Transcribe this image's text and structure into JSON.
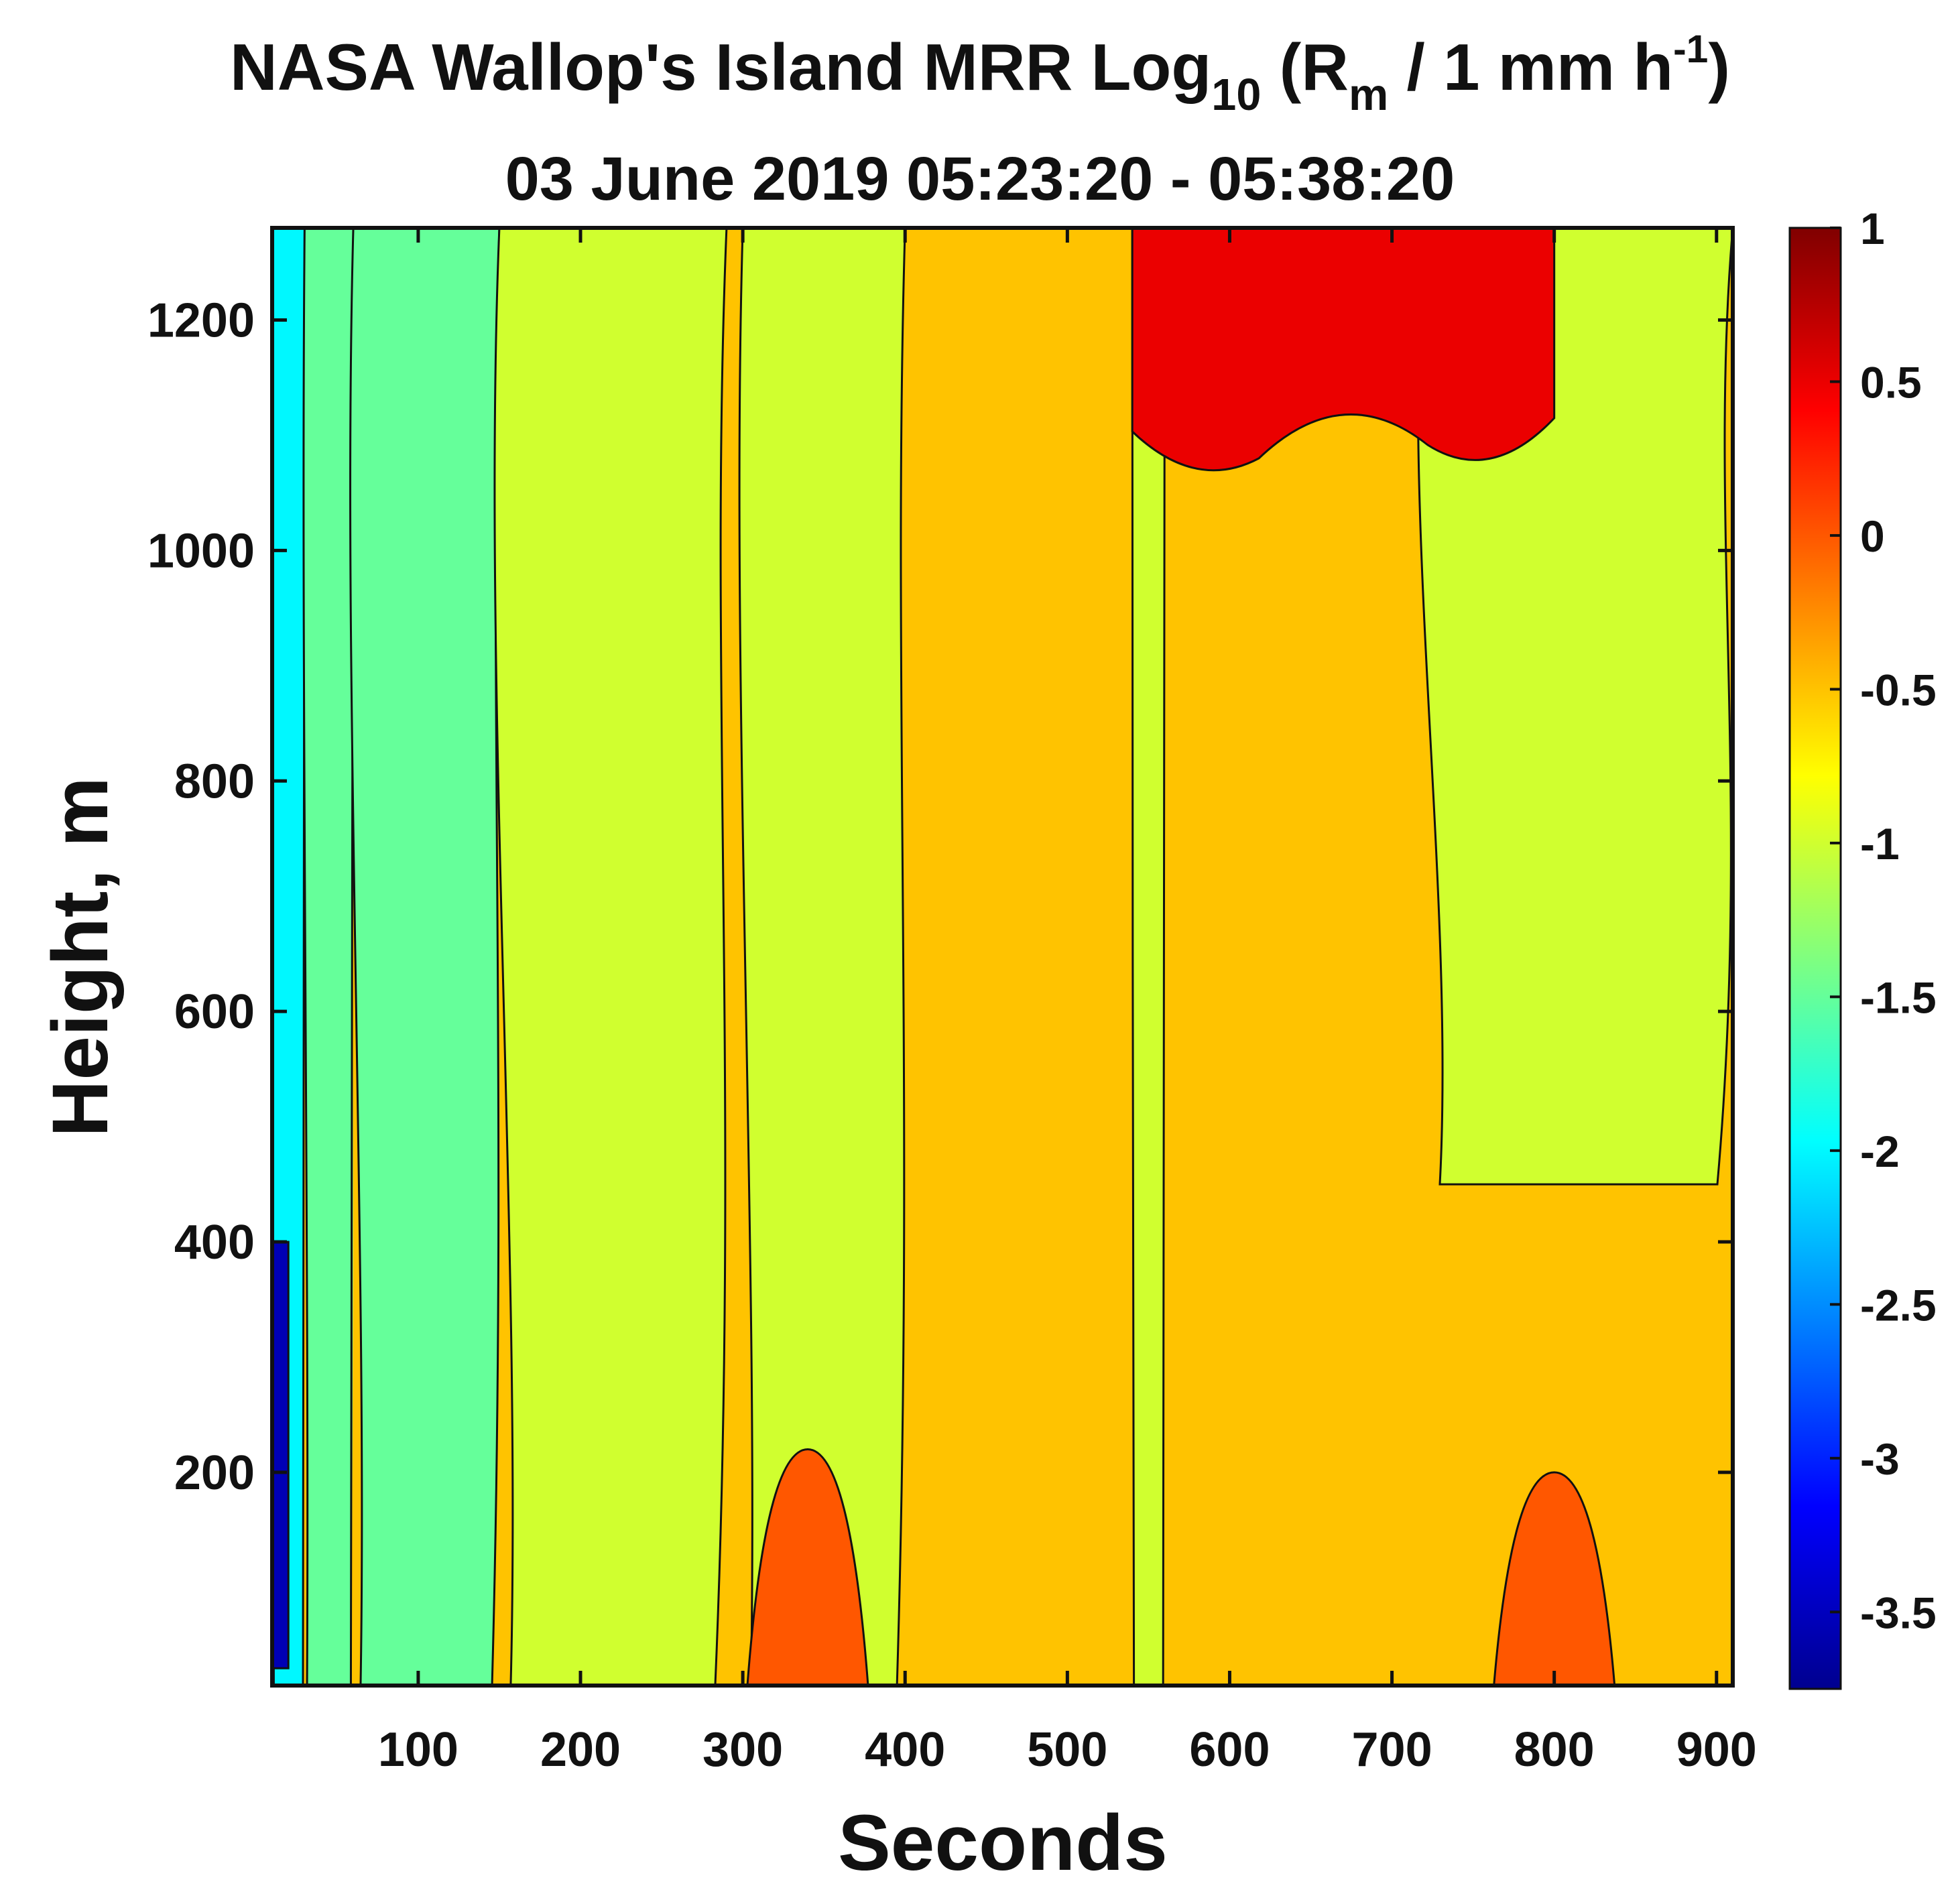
{
  "chart_data": {
    "type": "heatmap",
    "title_main": "NASA Wallop's Island MRR Log",
    "title_sub": "10",
    "title_open": " (R",
    "title_var_sub": "m",
    "title_unit": "  / 1 mm h",
    "title_unit_sup": "-1",
    "title_close": ")",
    "subtitle": "03 June 2019 05:23:20 - 05:38:20",
    "xlabel": "Seconds",
    "ylabel": "Height, m",
    "xlim": [
      10,
      910
    ],
    "ylim": [
      15,
      1280
    ],
    "xticks": [
      100,
      200,
      300,
      400,
      500,
      600,
      700,
      800,
      900
    ],
    "yticks": [
      200,
      400,
      600,
      800,
      1000,
      1200
    ],
    "colorbar": {
      "limits": [
        -3.75,
        1.0
      ],
      "ticks": [
        1,
        0.5,
        0,
        -0.5,
        -1,
        -1.5,
        -2,
        -2.5,
        -3,
        -3.5
      ],
      "tick_labels": [
        "1",
        "0.5",
        "0",
        "-0.5",
        "-1",
        "-1.5",
        "-2",
        "-2.5",
        "-3",
        "-3.5"
      ],
      "colormap": "jet"
    },
    "contour_levels": [
      -3.5,
      -3,
      -2.5,
      -2,
      -1.5,
      -1,
      -0.5,
      0,
      0.5
    ],
    "region_values": {
      "background": -0.5,
      "columns": [
        {
          "x_start": 10,
          "x_end": 30,
          "value": -2.0,
          "note": "left edge cyan column"
        },
        {
          "x_start": 30,
          "x_end": 60,
          "value": -1.5
        },
        {
          "x_start": 60,
          "x_end": 150,
          "value": -1.5,
          "note": "teal column"
        },
        {
          "x_start": 150,
          "x_end": 290,
          "value": -1.0,
          "note": "green-yellow band"
        },
        {
          "x_start": 300,
          "x_end": 400,
          "value": -1.0
        },
        {
          "x_start": 540,
          "x_end": 560,
          "value": -1.0
        },
        {
          "x_start": 720,
          "x_end": 910,
          "value": -1.0,
          "y_min": 450
        }
      ],
      "low_blue_near_ground": [
        {
          "x_start": 10,
          "x_end": 20,
          "y_start": 30,
          "y_end": 400,
          "value": -3.5
        }
      ],
      "surface_orange_patches": [
        {
          "x_center": 800,
          "y_top": 200,
          "value": 0.0
        },
        {
          "x_center": 340,
          "y_top": 220,
          "value": 0.0
        }
      ],
      "top_red_region": {
        "x_start": 540,
        "x_end": 800,
        "y_start": 1080,
        "y_end": 1280,
        "value": 0.5
      }
    }
  }
}
